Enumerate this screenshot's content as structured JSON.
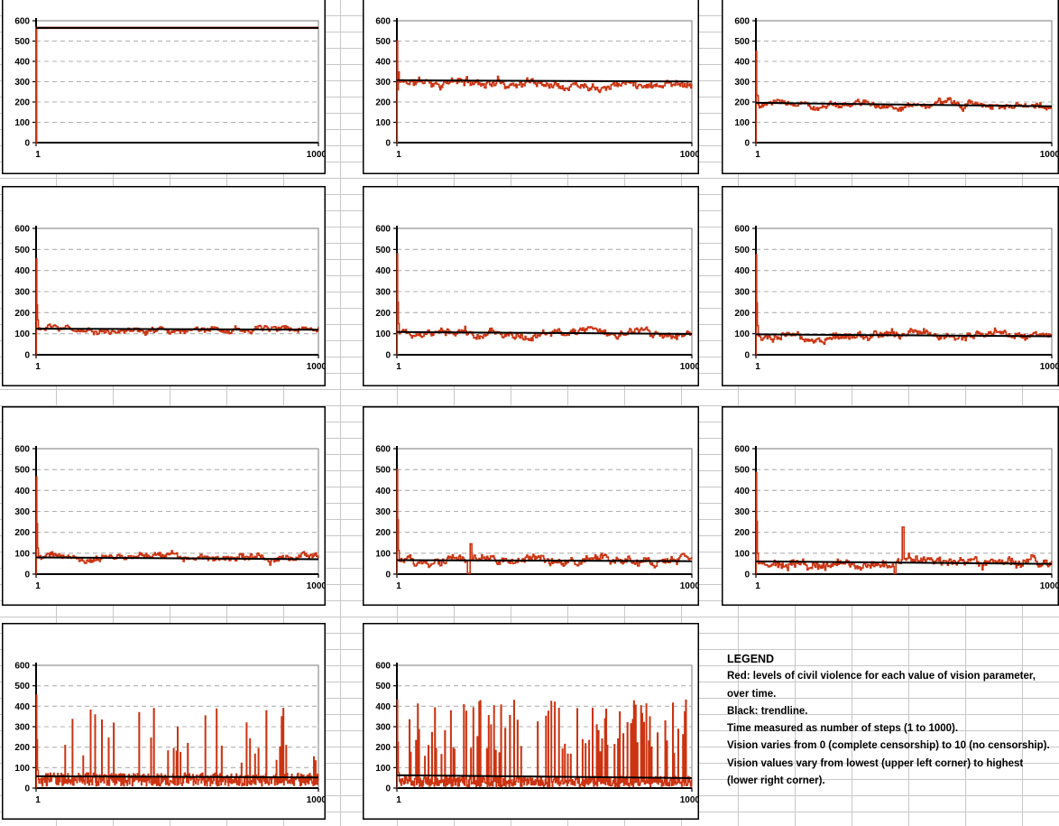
{
  "app": {
    "description": "spreadsheet panel of embedded line charts"
  },
  "colors": {
    "series_red": "#cc3311",
    "trendline_black": "#000000",
    "chart_border": "#000000",
    "plot_border_gray": "#909090",
    "dashed_gridline": "#b0b0b0",
    "sheet_gridline": "#c8c8c8",
    "background": "#ffffff"
  },
  "axes": {
    "y_tick_labels": [
      "0",
      "100",
      "200",
      "300",
      "400",
      "500",
      "600"
    ],
    "x_tick_labels": [
      "1",
      "1000"
    ],
    "ylim": [
      0,
      600
    ],
    "xlim": [
      1,
      1000
    ],
    "gridlines": "dashed horizontal at every 100"
  },
  "legend": {
    "title": "LEGEND",
    "lines": [
      "Red: levels of civil violence for each value of vision parameter,",
      "over time.",
      "Black: trendline.",
      "Time measured as number of steps (1 to 1000).",
      "Vision varies from 0 (complete censorship) to 10 (no censorship).",
      "Vision values vary from lowest (upper left corner) to highest",
      "(lower right corner)."
    ]
  },
  "chart_data": [
    {
      "type": "line",
      "vision": 0,
      "grid_position": "row 1, col 1",
      "xlim": [
        1,
        1000
      ],
      "ylim": [
        0,
        600
      ],
      "pattern": "constant",
      "initial_spike": 565,
      "mean": 565,
      "noise": 0,
      "trend_start": 565,
      "trend_end": 565,
      "series_names": [
        "civil violence (red)",
        "trendline (black)"
      ]
    },
    {
      "type": "line",
      "vision": 1,
      "grid_position": "row 1, col 2",
      "xlim": [
        1,
        1000
      ],
      "ylim": [
        0,
        600
      ],
      "pattern": "noisy",
      "initial_spike": 500,
      "mean": 298,
      "noise": 25,
      "trend_start": 307,
      "trend_end": 301,
      "series_names": [
        "civil violence (red)",
        "trendline (black)"
      ]
    },
    {
      "type": "line",
      "vision": 2,
      "grid_position": "row 1, col 3",
      "xlim": [
        1,
        1000
      ],
      "ylim": [
        0,
        600
      ],
      "pattern": "noisy",
      "initial_spike": 450,
      "mean": 186,
      "noise": 20,
      "trend_start": 196,
      "trend_end": 179,
      "series_names": [
        "civil violence (red)",
        "trendline (black)"
      ]
    },
    {
      "type": "line",
      "vision": 3,
      "grid_position": "row 2, col 1",
      "xlim": [
        1,
        1000
      ],
      "ylim": [
        0,
        600
      ],
      "pattern": "noisy",
      "initial_spike": 455,
      "mean": 120,
      "noise": 17,
      "trend_start": 124,
      "trend_end": 119,
      "series_names": [
        "civil violence (red)",
        "trendline (black)"
      ]
    },
    {
      "type": "line",
      "vision": 4,
      "grid_position": "row 2, col 2",
      "xlim": [
        1,
        1000
      ],
      "ylim": [
        0,
        600
      ],
      "pattern": "noisy",
      "initial_spike": 480,
      "mean": 100,
      "noise": 22,
      "trend_start": 108,
      "trend_end": 99,
      "series_names": [
        "civil violence (red)",
        "trendline (black)"
      ]
    },
    {
      "type": "line",
      "vision": 5,
      "grid_position": "row 2, col 3",
      "xlim": [
        1,
        1000
      ],
      "ylim": [
        0,
        600
      ],
      "pattern": "noisy",
      "initial_spike": 475,
      "mean": 91,
      "noise": 22,
      "trend_start": 97,
      "trend_end": 88,
      "series_names": [
        "civil violence (red)",
        "trendline (black)"
      ]
    },
    {
      "type": "line",
      "vision": 6,
      "grid_position": "row 3, col 1",
      "xlim": [
        1,
        1000
      ],
      "ylim": [
        0,
        600
      ],
      "pattern": "noisy",
      "initial_spike": 465,
      "mean": 78,
      "noise": 19,
      "trend_start": 80,
      "trend_end": 71,
      "series_names": [
        "civil violence (red)",
        "trendline (black)"
      ]
    },
    {
      "type": "line",
      "vision": 7,
      "grid_position": "row 3, col 2",
      "xlim": [
        1,
        1000
      ],
      "ylim": [
        0,
        600
      ],
      "pattern": "noisy",
      "initial_spike": 500,
      "mean": 63,
      "noise": 26,
      "trend_start": 67,
      "trend_end": 62,
      "anomaly_spikes": [
        {
          "x": 250,
          "value": 145
        },
        {
          "x": 243,
          "value": 4
        }
      ],
      "series_names": [
        "civil violence (red)",
        "trendline (black)"
      ]
    },
    {
      "type": "line",
      "vision": 8,
      "grid_position": "row 3, col 3",
      "xlim": [
        1,
        1000
      ],
      "ylim": [
        0,
        600
      ],
      "pattern": "noisy",
      "initial_spike": 485,
      "mean": 51,
      "noise": 28,
      "trend_start": 61,
      "trend_end": 49,
      "anomaly_spikes": [
        {
          "x": 497,
          "value": 225
        },
        {
          "x": 470,
          "value": 3
        }
      ],
      "series_names": [
        "civil violence (red)",
        "trendline (black)"
      ]
    },
    {
      "type": "line",
      "vision": 9,
      "grid_position": "row 4, col 1",
      "xlim": [
        1,
        1000
      ],
      "ylim": [
        0,
        600
      ],
      "pattern": "bursty",
      "initial_spike": 455,
      "mean": 42,
      "noise": 32,
      "burst_rate": 0.08,
      "burst_min": 120,
      "burst_max": 390,
      "trend_start": 58,
      "trend_end": 52,
      "series_names": [
        "civil violence (red)",
        "trendline (black)"
      ]
    },
    {
      "type": "line",
      "vision": 10,
      "grid_position": "row 4, col 2",
      "xlim": [
        1,
        1000
      ],
      "ylim": [
        0,
        600
      ],
      "pattern": "bursty",
      "initial_spike": 430,
      "mean": 32,
      "noise": 26,
      "burst_rate": 0.18,
      "burst_min": 150,
      "burst_max": 430,
      "trend_start": 63,
      "trend_end": 49,
      "series_names": [
        "civil violence (red)",
        "trendline (black)"
      ]
    }
  ]
}
